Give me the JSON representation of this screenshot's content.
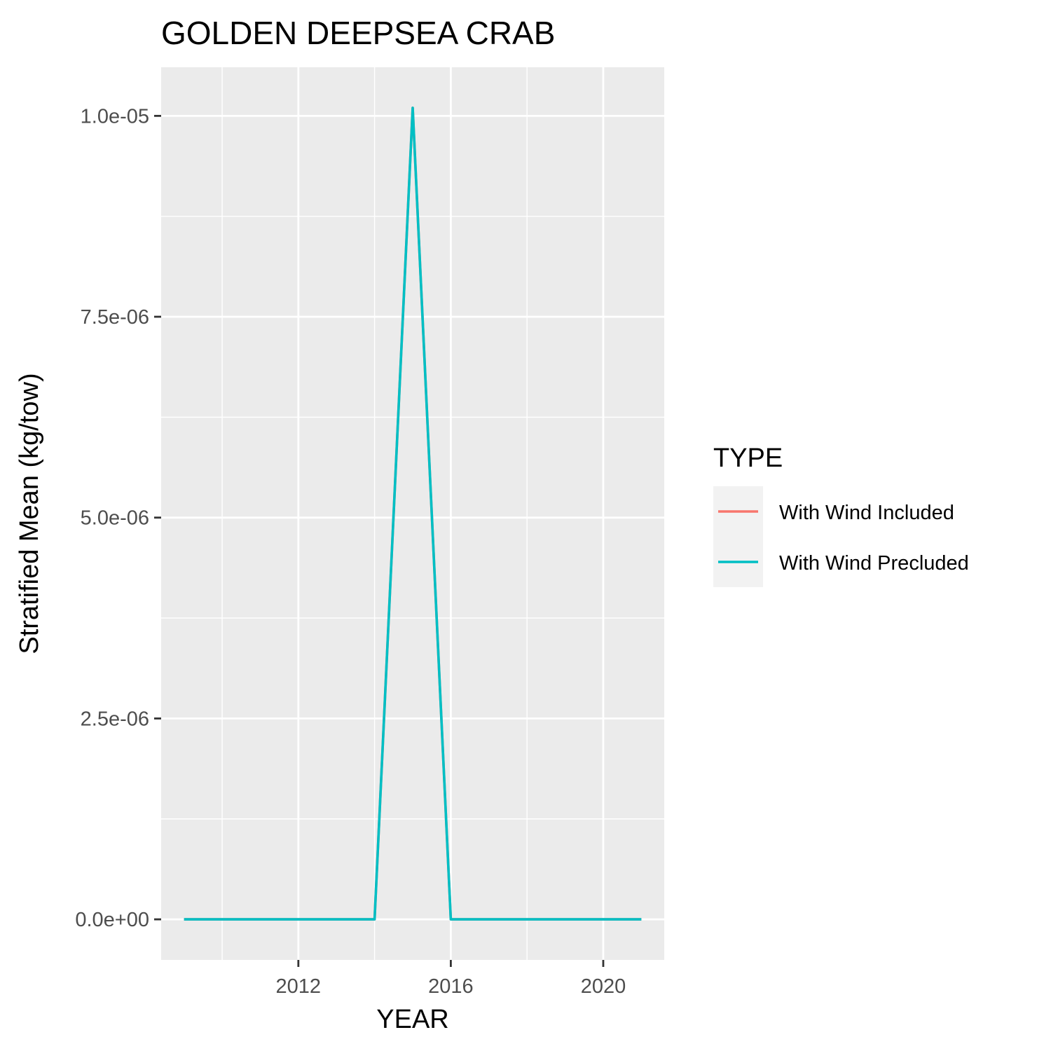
{
  "chart_data": {
    "type": "line",
    "title": "GOLDEN DEEPSEA CRAB",
    "xlabel": "YEAR",
    "ylabel": "Stratified Mean (kg/tow)",
    "x": [
      2009,
      2010,
      2011,
      2012,
      2013,
      2014,
      2015,
      2016,
      2017,
      2018,
      2019,
      2020,
      2021
    ],
    "series": [
      {
        "name": "With Wind Included",
        "color": "#F8766D",
        "values": [
          0,
          0,
          0,
          0,
          0,
          0,
          1.01e-05,
          0,
          0,
          0,
          0,
          0,
          0
        ]
      },
      {
        "name": "With Wind Precluded",
        "color": "#00BFC4",
        "values": [
          0,
          0,
          0,
          0,
          0,
          0,
          1.01e-05,
          0,
          0,
          0,
          0,
          0,
          0
        ]
      }
    ],
    "xlim": [
      2008.4,
      2021.6
    ],
    "ylim": [
      -5.05e-07,
      1.0605e-05
    ],
    "x_ticks": [
      2012,
      2016,
      2020
    ],
    "x_tick_labels": [
      "2012",
      "2016",
      "2020"
    ],
    "x_minor_ticks": [
      2010,
      2014,
      2018
    ],
    "y_ticks": [
      0,
      2.5e-06,
      5e-06,
      7.5e-06,
      1e-05
    ],
    "y_tick_labels": [
      "0.0e+00",
      "2.5e-06",
      "5.0e-06",
      "7.5e-06",
      "1.0e-05"
    ],
    "y_minor_ticks": [
      1.25e-06,
      3.75e-06,
      6.25e-06,
      8.75e-06
    ],
    "grid": true,
    "panel_background": "#EBEBEB",
    "legend": {
      "title": "TYPE",
      "position": "right",
      "background": "#F2F2F2"
    }
  }
}
